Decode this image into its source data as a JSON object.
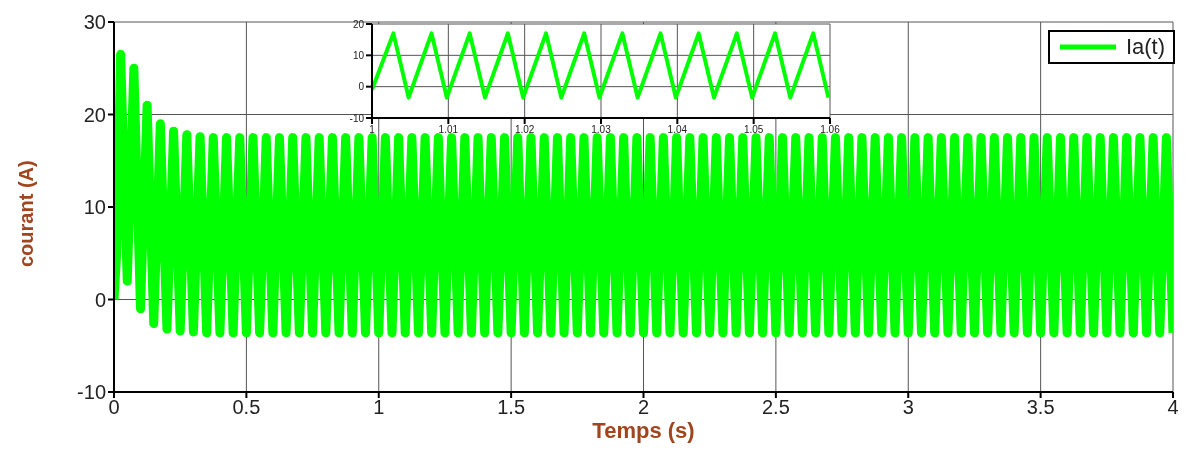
{
  "chart_data": [
    {
      "type": "line",
      "xlabel": "Temps (s)",
      "ylabel": "courant (A)",
      "xlim": [
        0,
        4
      ],
      "xticks": [
        0,
        0.5,
        1,
        1.5,
        2,
        2.5,
        3,
        3.5,
        4
      ],
      "ylim": [
        -10,
        30
      ],
      "yticks": [
        -10,
        0,
        10,
        20,
        30
      ],
      "grid": true,
      "legend": "top right",
      "series": [
        {
          "name": "Ia(t)",
          "color": "#00ff00",
          "x": [
            0,
            0.01,
            0.025,
            0.05,
            0.075,
            0.1,
            0.125,
            0.15,
            0.175,
            0.2,
            0.225,
            0.25,
            0.275,
            0.3,
            0.325,
            0.35,
            0.375,
            0.4,
            0.425,
            0.45,
            0.475,
            0.5,
            0.525,
            0.55,
            0.575,
            0.6,
            0.625,
            0.65,
            0.675,
            0.7,
            0.725,
            0.75,
            0.775,
            0.8,
            0.825,
            0.85,
            0.875,
            0.9,
            0.925,
            0.95,
            0.975,
            1,
            1.025,
            1.05,
            1.075,
            1.1,
            1.125,
            1.15,
            1.175,
            1.2,
            1.225,
            1.25,
            1.275,
            1.3,
            1.325,
            1.35,
            1.375,
            1.4,
            1.425,
            1.45,
            1.475,
            1.5,
            1.525,
            1.55,
            1.575,
            1.6,
            1.625,
            1.65,
            1.675,
            1.7,
            1.725,
            1.75,
            1.775,
            1.8,
            1.825,
            1.85,
            1.875,
            1.9,
            1.925,
            1.95,
            1.975,
            2,
            2.025,
            2.05,
            2.075,
            2.1,
            2.125,
            2.15,
            2.175,
            2.2,
            2.225,
            2.25,
            2.275,
            2.3,
            2.325,
            2.35,
            2.375,
            2.4,
            2.425,
            2.45,
            2.475,
            2.5,
            2.525,
            2.55,
            2.575,
            2.6,
            2.625,
            2.65,
            2.675,
            2.7,
            2.725,
            2.75,
            2.775,
            2.8,
            2.825,
            2.85,
            2.875,
            2.9,
            2.925,
            2.95,
            2.975,
            3,
            3.025,
            3.05,
            3.075,
            3.1,
            3.125,
            3.15,
            3.175,
            3.2,
            3.225,
            3.25,
            3.275,
            3.3,
            3.325,
            3.35,
            3.375,
            3.4,
            3.425,
            3.45,
            3.475,
            3.5,
            3.525,
            3.55,
            3.575,
            3.6,
            3.625,
            3.65,
            3.675,
            3.7,
            3.725,
            3.75,
            3.775,
            3.8,
            3.825,
            3.85,
            3.875,
            3.9,
            3.925,
            3.95,
            3.975,
            4
          ],
          "values": [
            0,
            5,
            26.5,
            2,
            25,
            -1,
            21,
            -2.6,
            19,
            -3.2,
            18.2,
            -3.4,
            17.8,
            -3.5,
            17.6,
            -3.6,
            17.5,
            -3.6,
            17.5,
            -3.6,
            17.5,
            -3.6,
            17.5,
            -3.6,
            17.5,
            -3.6,
            17.5,
            -3.6,
            17.5,
            -3.6,
            17.5,
            -3.6,
            17.5,
            -3.6,
            17.5,
            -3.6,
            17.5,
            -3.6,
            17.5,
            -3.6,
            17.5,
            -3.6,
            17.5,
            -3.6,
            17.5,
            -3.6,
            17.5,
            -3.6,
            17.5,
            -3.6,
            17.5,
            -3.6,
            17.5,
            -3.6,
            17.5,
            -3.6,
            17.5,
            -3.6,
            17.5,
            -3.6,
            17.5,
            -3.6,
            17.5,
            -3.6,
            17.5,
            -3.6,
            17.5,
            -3.6,
            17.5,
            -3.6,
            17.5,
            -3.6,
            17.5,
            -3.6,
            17.5,
            -3.6,
            17.5,
            -3.6,
            17.5,
            -3.6,
            17.5,
            -3.6,
            17.5,
            -3.6,
            17.5,
            -3.6,
            17.5,
            -3.6,
            17.5,
            -3.6,
            17.5,
            -3.6,
            17.5,
            -3.6,
            17.5,
            -3.6,
            17.5,
            -3.6,
            17.5,
            -3.6,
            17.5,
            -3.6,
            17.5,
            -3.6,
            17.5,
            -3.6,
            17.5,
            -3.6,
            17.5,
            -3.6,
            17.5,
            -3.6,
            17.5,
            -3.6,
            17.5,
            -3.6,
            17.5,
            -3.6,
            17.5,
            -3.6,
            17.5,
            -3.6,
            17.5,
            -3.6,
            17.5,
            -3.6,
            17.5,
            -3.6,
            17.5,
            -3.6,
            17.5,
            -3.6,
            17.5,
            -3.6,
            17.5,
            -3.6,
            17.5,
            -3.6,
            17.5,
            -3.6,
            17.5,
            -3.6,
            17.5,
            -3.6,
            17.5,
            -3.6,
            17.5,
            -3.6,
            17.5,
            -3.6,
            17.5,
            -3.6,
            17.5,
            -3.6,
            17.5,
            -3.6,
            17.5,
            -3.6,
            17.5,
            -3.6,
            17.5,
            -3.6
          ]
        }
      ]
    },
    {
      "type": "line",
      "xlim": [
        1,
        1.06
      ],
      "xticks": [
        1,
        1.01,
        1.02,
        1.03,
        1.04,
        1.05,
        1.06
      ],
      "ylim": [
        -10,
        20
      ],
      "yticks": [
        -10,
        0,
        10,
        20
      ],
      "grid": true,
      "series": [
        {
          "color": "#00ff00",
          "x": [
            1,
            1.0028,
            1.0048,
            1.0078,
            1.0098,
            1.0128,
            1.0148,
            1.0178,
            1.0198,
            1.0228,
            1.0248,
            1.0278,
            1.0298,
            1.0328,
            1.0348,
            1.0378,
            1.0398,
            1.0428,
            1.0448,
            1.0478,
            1.0498,
            1.0528,
            1.0548,
            1.0578,
            1.0598
          ],
          "values": [
            -1,
            17,
            -3.5,
            17,
            -3.5,
            17,
            -3.5,
            17,
            -3.5,
            17,
            -3.5,
            17,
            -3.5,
            17,
            -3.5,
            17,
            -3.5,
            17,
            -3.5,
            17,
            -3.5,
            17,
            -3.5,
            17,
            -3.5
          ]
        }
      ]
    }
  ]
}
